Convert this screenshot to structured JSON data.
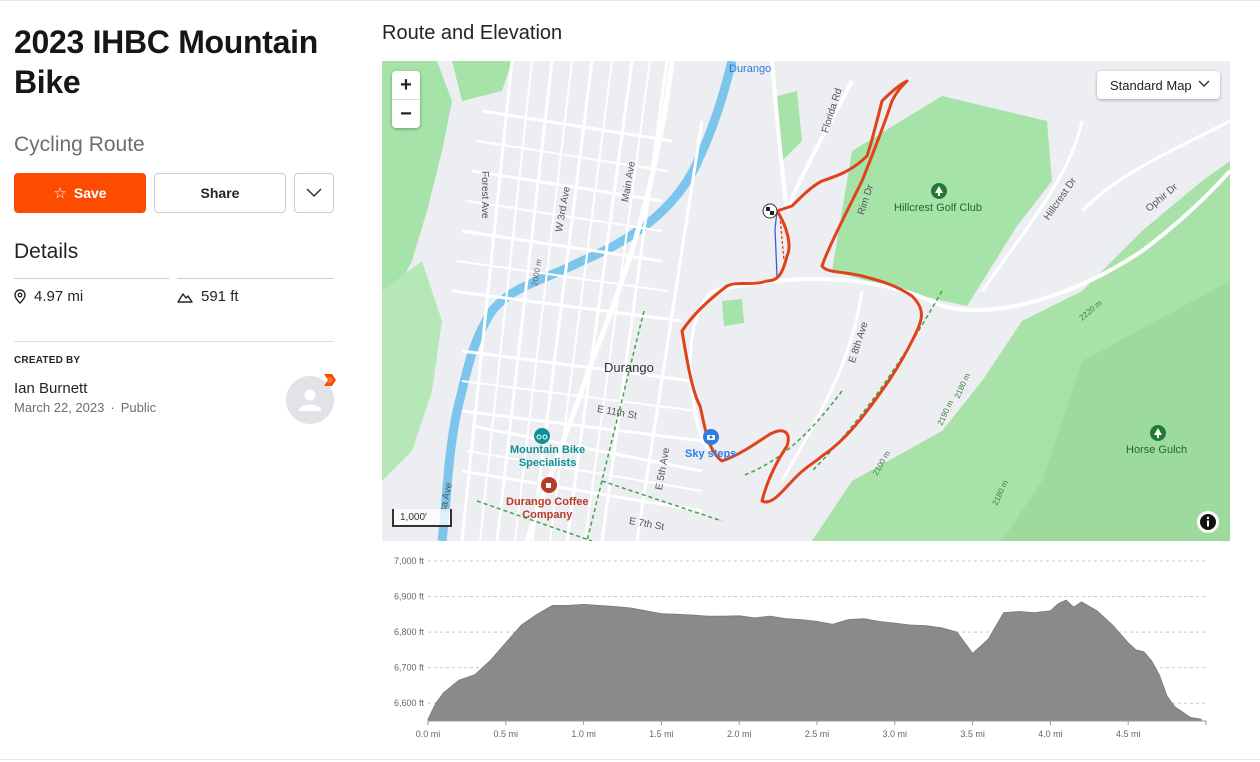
{
  "route": {
    "title": "2023 IHBC Mountain Bike",
    "type": "Cycling Route"
  },
  "actions": {
    "save_label": "Save",
    "share_label": "Share"
  },
  "details": {
    "heading": "Details",
    "distance": "4.97 mi",
    "elevation_gain": "591 ft"
  },
  "creator": {
    "label": "CREATED BY",
    "name": "Ian Burnett",
    "date": "March 22, 2023",
    "visibility": "Public"
  },
  "map": {
    "section_title": "Route and Elevation",
    "style_label": "Standard Map",
    "scale_label": "1,000′",
    "streets": [
      "Forest Ave",
      "W 3rd Ave",
      "Main Ave",
      "Florida Rd",
      "Rim Dr",
      "Hillcrest Dr",
      "Ophir Dr",
      "E 8th Ave",
      "E 11th St",
      "E 5th Ave",
      "E 7th St",
      "sa Ave"
    ],
    "places": [
      "Durango",
      "Durango"
    ],
    "pois": {
      "golf": "Hillcrest Golf Club",
      "bike_shop": "Mountain Bike\nSpecialists",
      "coffee": "Durango Coffee\nCompany",
      "sky_steps": "Sky steps",
      "horse_gulch": "Horse Gulch"
    },
    "contours": [
      "2000 m",
      "2220 m",
      "2190 m",
      "2180 m",
      "2100 m",
      "2180 m"
    ],
    "colors": {
      "route": "#e0421b",
      "park": "#a6e3a8",
      "water": "#7cc5ec",
      "road": "#ffffff"
    }
  },
  "chart_data": {
    "type": "area",
    "title": "",
    "xlabel": "",
    "ylabel": "",
    "x_unit": "mi",
    "y_unit": "ft",
    "xlim": [
      0,
      5.0
    ],
    "ylim": [
      6550,
      7000
    ],
    "yticks": [
      "6,600 ft",
      "6,700 ft",
      "6,800 ft",
      "6,900 ft",
      "7,000 ft"
    ],
    "ytick_values": [
      6600,
      6700,
      6800,
      6900,
      7000
    ],
    "xticks": [
      "0.0 mi",
      "0.5 mi",
      "1.0 mi",
      "1.5 mi",
      "2.0 mi",
      "2.5 mi",
      "3.0 mi",
      "3.5 mi",
      "4.0 mi",
      "4.5 mi"
    ],
    "xtick_values": [
      0,
      0.5,
      1.0,
      1.5,
      2.0,
      2.5,
      3.0,
      3.5,
      4.0,
      4.5
    ],
    "grid": true,
    "color": "#8a8a8a",
    "x": [
      0.0,
      0.05,
      0.1,
      0.2,
      0.3,
      0.4,
      0.5,
      0.6,
      0.7,
      0.8,
      0.9,
      1.0,
      1.1,
      1.2,
      1.3,
      1.4,
      1.5,
      1.6,
      1.7,
      1.8,
      1.9,
      2.0,
      2.1,
      2.2,
      2.3,
      2.4,
      2.5,
      2.6,
      2.7,
      2.8,
      2.9,
      3.0,
      3.1,
      3.2,
      3.3,
      3.4,
      3.5,
      3.6,
      3.7,
      3.8,
      3.9,
      4.0,
      4.05,
      4.1,
      4.15,
      4.2,
      4.3,
      4.4,
      4.5,
      4.55,
      4.6,
      4.65,
      4.7,
      4.75,
      4.8,
      4.85,
      4.9,
      4.97
    ],
    "values": [
      6555,
      6600,
      6630,
      6665,
      6680,
      6720,
      6770,
      6820,
      6850,
      6875,
      6875,
      6878,
      6875,
      6872,
      6868,
      6860,
      6852,
      6850,
      6848,
      6845,
      6845,
      6846,
      6840,
      6845,
      6838,
      6835,
      6830,
      6822,
      6835,
      6838,
      6830,
      6825,
      6820,
      6818,
      6812,
      6800,
      6740,
      6780,
      6855,
      6858,
      6855,
      6860,
      6880,
      6890,
      6870,
      6885,
      6860,
      6820,
      6770,
      6750,
      6745,
      6720,
      6680,
      6620,
      6590,
      6575,
      6560,
      6555
    ]
  }
}
